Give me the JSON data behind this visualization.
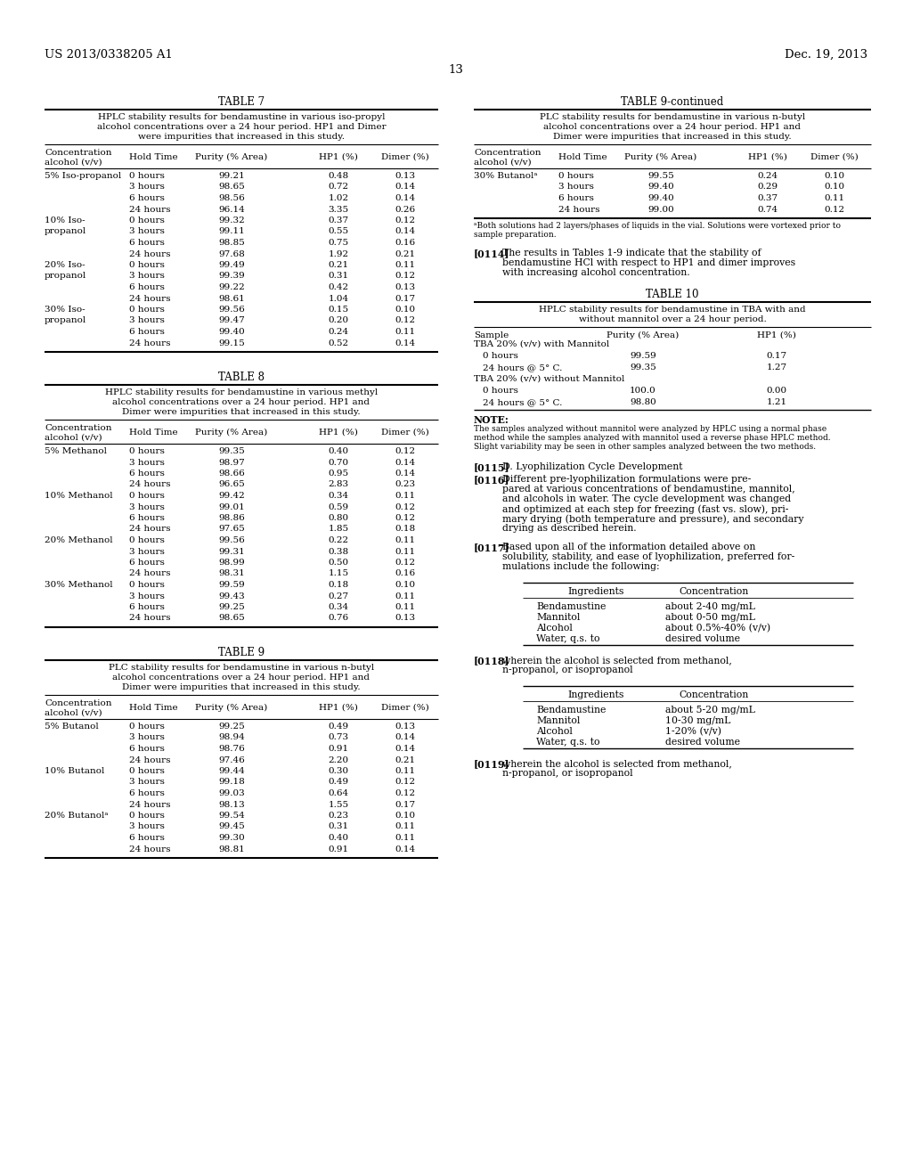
{
  "page_number": "13",
  "patent_left": "US 2013/0338205 A1",
  "patent_right": "Dec. 19, 2013",
  "background_color": "#ffffff",
  "table7": {
    "title": "TABLE 7",
    "subtitle_lines": [
      "HPLC stability results for bendamustine in various iso-propyl",
      "alcohol concentrations over a 24 hour period. HP1 and Dimer",
      "were impurities that increased in this study."
    ],
    "col_headers": [
      "Concentration\nalcohol (v/v)",
      "Hold Time",
      "Purity (% Area)",
      "HP1 (%)",
      "Dimer (%)"
    ],
    "rows": [
      [
        "5% Iso-propanol",
        "0 hours",
        "99.21",
        "0.48",
        "0.13"
      ],
      [
        "",
        "3 hours",
        "98.65",
        "0.72",
        "0.14"
      ],
      [
        "",
        "6 hours",
        "98.56",
        "1.02",
        "0.14"
      ],
      [
        "",
        "24 hours",
        "96.14",
        "3.35",
        "0.26"
      ],
      [
        "10% Iso-",
        "0 hours",
        "99.32",
        "0.37",
        "0.12"
      ],
      [
        "propanol",
        "3 hours",
        "99.11",
        "0.55",
        "0.14"
      ],
      [
        "",
        "6 hours",
        "98.85",
        "0.75",
        "0.16"
      ],
      [
        "",
        "24 hours",
        "97.68",
        "1.92",
        "0.21"
      ],
      [
        "20% Iso-",
        "0 hours",
        "99.49",
        "0.21",
        "0.11"
      ],
      [
        "propanol",
        "3 hours",
        "99.39",
        "0.31",
        "0.12"
      ],
      [
        "",
        "6 hours",
        "99.22",
        "0.42",
        "0.13"
      ],
      [
        "",
        "24 hours",
        "98.61",
        "1.04",
        "0.17"
      ],
      [
        "30% Iso-",
        "0 hours",
        "99.56",
        "0.15",
        "0.10"
      ],
      [
        "propanol",
        "3 hours",
        "99.47",
        "0.20",
        "0.12"
      ],
      [
        "",
        "6 hours",
        "99.40",
        "0.24",
        "0.11"
      ],
      [
        "",
        "24 hours",
        "99.15",
        "0.52",
        "0.14"
      ]
    ]
  },
  "table8": {
    "title": "TABLE 8",
    "subtitle_lines": [
      "HPLC stability results for bendamustine in various methyl",
      "alcohol concentrations over a 24 hour period. HP1 and",
      "Dimer were impurities that increased in this study."
    ],
    "col_headers": [
      "Concentration\nalcohol (v/v)",
      "Hold Time",
      "Purity (% Area)",
      "HP1 (%)",
      "Dimer (%)"
    ],
    "rows": [
      [
        "5% Methanol",
        "0 hours",
        "99.35",
        "0.40",
        "0.12"
      ],
      [
        "",
        "3 hours",
        "98.97",
        "0.70",
        "0.14"
      ],
      [
        "",
        "6 hours",
        "98.66",
        "0.95",
        "0.14"
      ],
      [
        "",
        "24 hours",
        "96.65",
        "2.83",
        "0.23"
      ],
      [
        "10% Methanol",
        "0 hours",
        "99.42",
        "0.34",
        "0.11"
      ],
      [
        "",
        "3 hours",
        "99.01",
        "0.59",
        "0.12"
      ],
      [
        "",
        "6 hours",
        "98.86",
        "0.80",
        "0.12"
      ],
      [
        "",
        "24 hours",
        "97.65",
        "1.85",
        "0.18"
      ],
      [
        "20% Methanol",
        "0 hours",
        "99.56",
        "0.22",
        "0.11"
      ],
      [
        "",
        "3 hours",
        "99.31",
        "0.38",
        "0.11"
      ],
      [
        "",
        "6 hours",
        "98.99",
        "0.50",
        "0.12"
      ],
      [
        "",
        "24 hours",
        "98.31",
        "1.15",
        "0.16"
      ],
      [
        "30% Methanol",
        "0 hours",
        "99.59",
        "0.18",
        "0.10"
      ],
      [
        "",
        "3 hours",
        "99.43",
        "0.27",
        "0.11"
      ],
      [
        "",
        "6 hours",
        "99.25",
        "0.34",
        "0.11"
      ],
      [
        "",
        "24 hours",
        "98.65",
        "0.76",
        "0.13"
      ]
    ]
  },
  "table9": {
    "title": "TABLE 9",
    "subtitle_lines": [
      "PLC stability results for bendamustine in various n-butyl",
      "alcohol concentrations over a 24 hour period. HP1 and",
      "Dimer were impurities that increased in this study."
    ],
    "col_headers": [
      "Concentration\nalcohol (v/v)",
      "Hold Time",
      "Purity (% Area)",
      "HP1 (%)",
      "Dimer (%)"
    ],
    "rows": [
      [
        "5% Butanol",
        "0 hours",
        "99.25",
        "0.49",
        "0.13"
      ],
      [
        "",
        "3 hours",
        "98.94",
        "0.73",
        "0.14"
      ],
      [
        "",
        "6 hours",
        "98.76",
        "0.91",
        "0.14"
      ],
      [
        "",
        "24 hours",
        "97.46",
        "2.20",
        "0.21"
      ],
      [
        "10% Butanol",
        "0 hours",
        "99.44",
        "0.30",
        "0.11"
      ],
      [
        "",
        "3 hours",
        "99.18",
        "0.49",
        "0.12"
      ],
      [
        "",
        "6 hours",
        "99.03",
        "0.64",
        "0.12"
      ],
      [
        "",
        "24 hours",
        "98.13",
        "1.55",
        "0.17"
      ],
      [
        "20% Butanolᵃ",
        "0 hours",
        "99.54",
        "0.23",
        "0.10"
      ],
      [
        "",
        "3 hours",
        "99.45",
        "0.31",
        "0.11"
      ],
      [
        "",
        "6 hours",
        "99.30",
        "0.40",
        "0.11"
      ],
      [
        "",
        "24 hours",
        "98.81",
        "0.91",
        "0.14"
      ]
    ]
  },
  "table9_continued": {
    "title": "TABLE 9-continued",
    "subtitle_lines": [
      "PLC stability results for bendamustine in various n-butyl",
      "alcohol concentrations over a 24 hour period. HP1 and",
      "Dimer were impurities that increased in this study."
    ],
    "col_headers": [
      "Concentration\nalcohol (v/v)",
      "Hold Time",
      "Purity (% Area)",
      "HP1 (%)",
      "Dimer (%)"
    ],
    "rows": [
      [
        "30% Butanolᵃ",
        "0 hours",
        "99.55",
        "0.24",
        "0.10"
      ],
      [
        "",
        "3 hours",
        "99.40",
        "0.29",
        "0.10"
      ],
      [
        "",
        "6 hours",
        "99.40",
        "0.37",
        "0.11"
      ],
      [
        "",
        "24 hours",
        "99.00",
        "0.74",
        "0.12"
      ]
    ],
    "footnote_lines": [
      "ᵃBoth solutions had 2 layers/phases of liquids in the vial. Solutions were vortexed prior to",
      "sample preparation."
    ]
  },
  "table10": {
    "title": "TABLE 10",
    "subtitle_lines": [
      "HPLC stability results for bendamustine in TBA with and",
      "without mannitol over a 24 hour period."
    ],
    "col_headers": [
      "Sample",
      "Purity (% Area)",
      "HP1 (%)"
    ],
    "section1_header": "TBA 20% (v/v) with Mannitol",
    "section1_rows": [
      [
        "0 hours",
        "99.59",
        "0.17"
      ],
      [
        "24 hours @ 5° C.",
        "99.35",
        "1.27"
      ]
    ],
    "section2_header": "TBA 20% (v/v) without Mannitol",
    "section2_rows": [
      [
        "0 hours",
        "100.0",
        "0.00"
      ],
      [
        "24 hours @ 5° C.",
        "98.80",
        "1.21"
      ]
    ],
    "note_header": "NOTE:",
    "note_lines": [
      "The samples analyzed without mannitol were analyzed by HPLC using a normal phase",
      "method while the samples analyzed with mannitol used a reverse phase HPLC method.",
      "Slight variability may be seen in other samples analyzed between the two methods."
    ]
  },
  "p114_tag": "[0114]",
  "p114_lines": [
    "The results in Tables 1-9 indicate that the stability of",
    "bendamustine HCl with respect to HP1 and dimer improves",
    "with increasing alcohol concentration."
  ],
  "p115_tag": "[0115]",
  "p115_text": "D. Lyophilization Cycle Development",
  "p116_tag": "[0116]",
  "p116_lines": [
    "Different pre-lyophilization formulations were pre-",
    "pared at various concentrations of bendamustine, mannitol,",
    "and alcohols in water. The cycle development was changed",
    "and optimized at each step for freezing (fast vs. slow), pri-",
    "mary drying (both temperature and pressure), and secondary",
    "drying as described herein."
  ],
  "p117_tag": "[0117]",
  "p117_lines": [
    "Based upon all of the information detailed above on",
    "solubility, stability, and ease of lyophilization, preferred for-",
    "mulations include the following:"
  ],
  "form1_col1": "Ingredients",
  "form1_col2": "Concentration",
  "form1_rows": [
    [
      "Bendamustine",
      "about 2-40 mg/mL"
    ],
    [
      "Mannitol",
      "about 0-50 mg/mL"
    ],
    [
      "Alcohol",
      "about 0.5%-40% (v/v)"
    ],
    [
      "Water, q.s. to",
      "desired volume"
    ]
  ],
  "p118_tag": "[0118]",
  "p118_lines": [
    "wherein the alcohol is selected from methanol,",
    "n-propanol, or isopropanol"
  ],
  "form2_col1": "Ingredients",
  "form2_col2": "Concentration",
  "form2_rows": [
    [
      "Bendamustine",
      "about 5-20 mg/mL"
    ],
    [
      "Mannitol",
      "10-30 mg/mL"
    ],
    [
      "Alcohol",
      "1-20% (v/v)"
    ],
    [
      "Water, q.s. to",
      "desired volume"
    ]
  ],
  "p119_tag": "[0119]",
  "p119_lines": [
    "wherein the alcohol is selected from methanol,",
    "n-propanol, or isopropanol"
  ]
}
